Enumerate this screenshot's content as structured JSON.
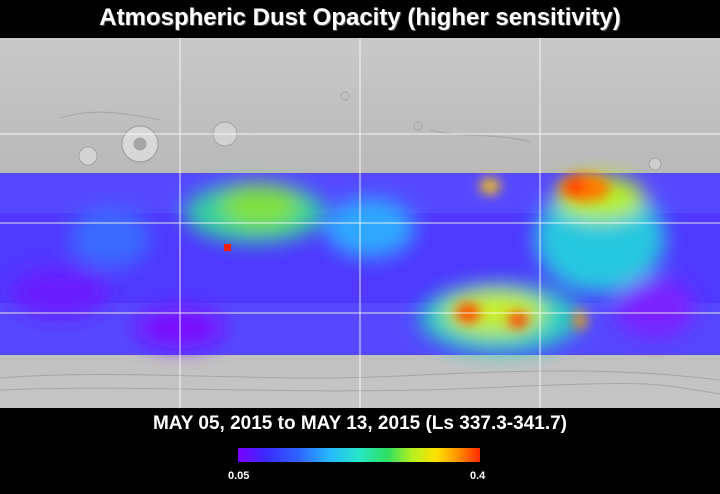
{
  "title": "Atmospheric Dust Opacity (higher sensitivity)",
  "date_range": "MAY 05, 2015 to MAY 13, 2015 (Ls 337.3-341.7)",
  "colorbar": {
    "min_label": "0.05",
    "max_label": "0.4",
    "colors": [
      "#7a00ff",
      "#3a2cff",
      "#2f64ff",
      "#26b9ff",
      "#26e8c8",
      "#30e060",
      "#b8f020",
      "#ffe200",
      "#ff9a00",
      "#ff2a00"
    ]
  },
  "map": {
    "background": "#bdbdbd",
    "data_band_color": "#5a50ff",
    "grid_color": "#ffffff"
  }
}
